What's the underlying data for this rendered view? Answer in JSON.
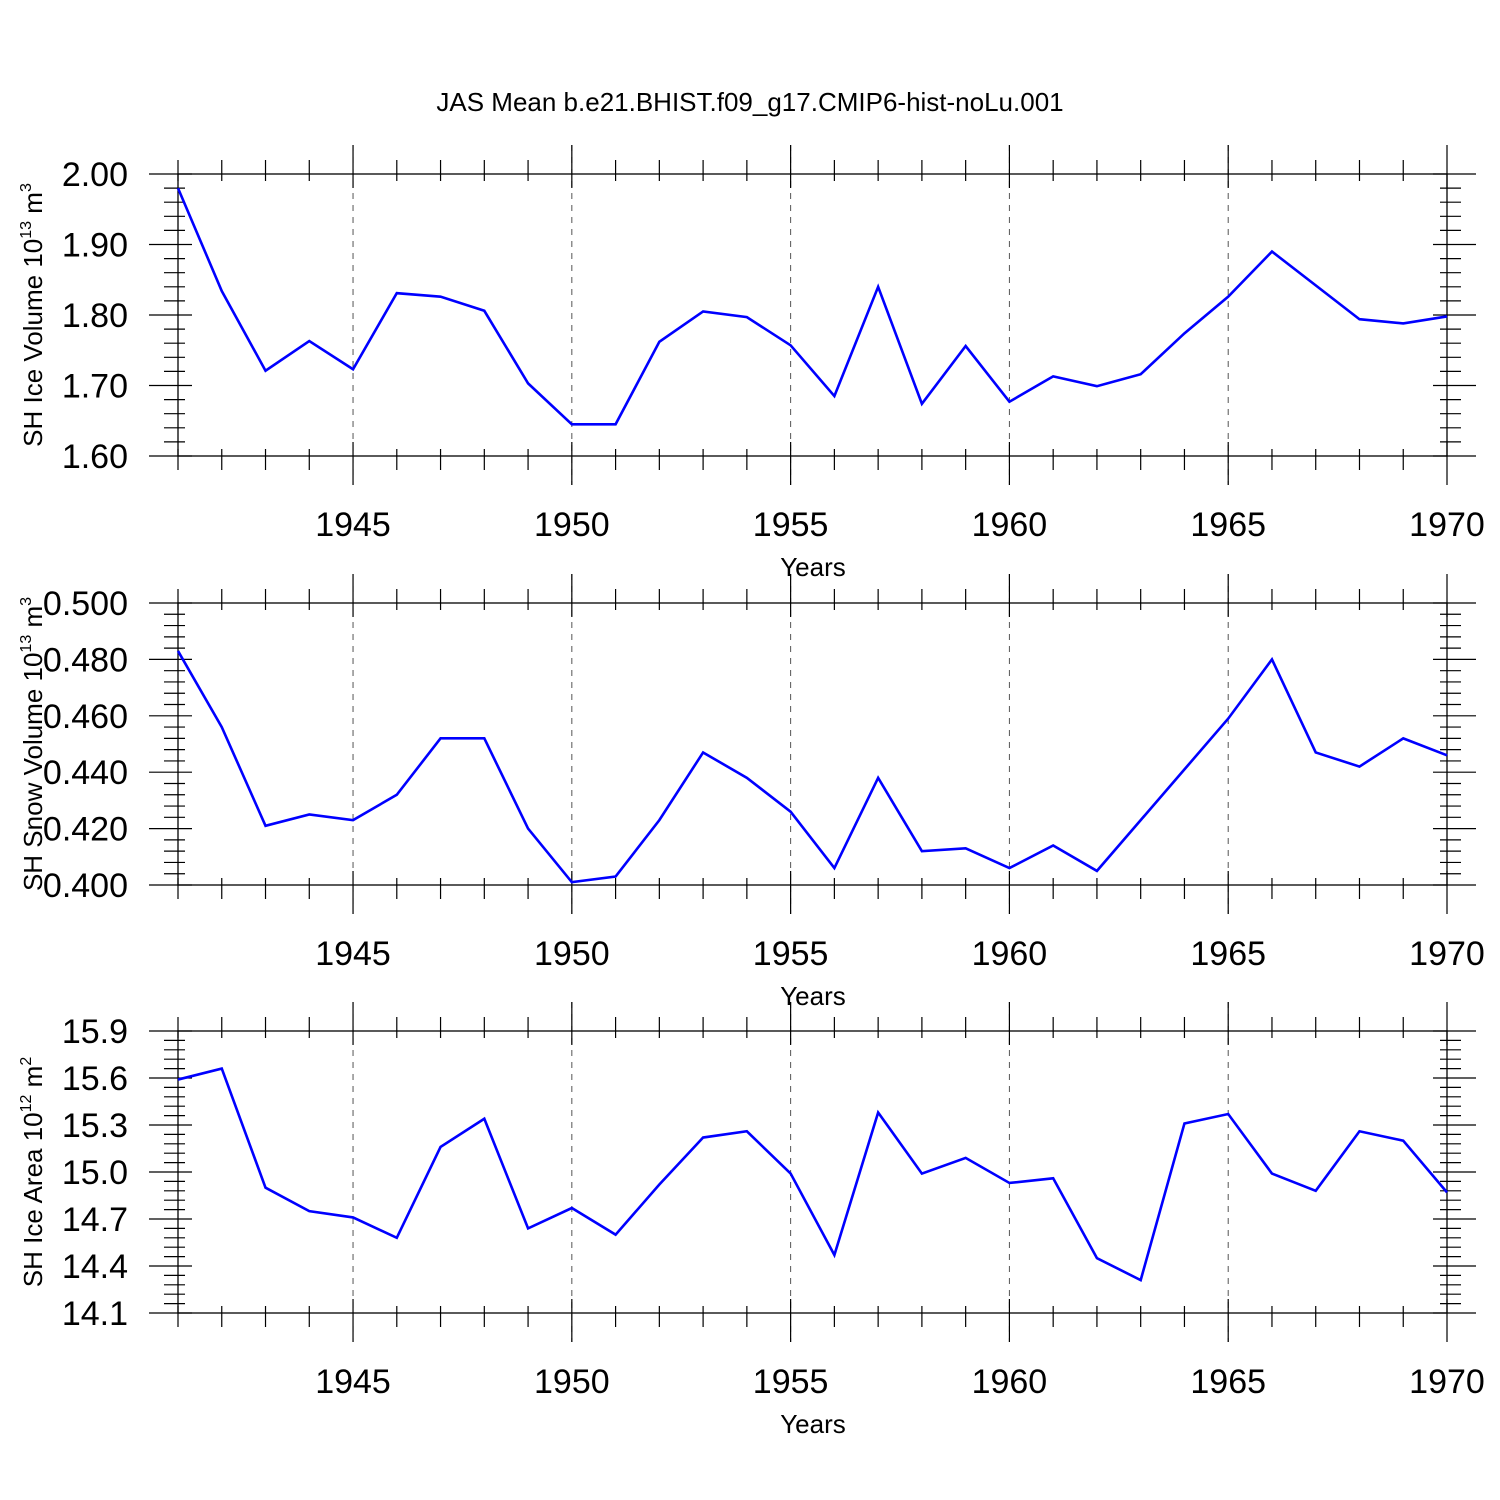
{
  "figure": {
    "title": "JAS Mean b.e21.BHIST.f09_g17.CMIP6-hist-noLu.001"
  },
  "chart_data": [
    {
      "type": "line",
      "id": "ice-volume",
      "xlabel": "Years",
      "ylabel": "SH Ice Volume 10",
      "ylabel_exp": "13",
      "ylabel_unit": " m",
      "ylabel_unit_exp": "3",
      "xlim": [
        1941,
        1970
      ],
      "ylim": [
        1.6,
        2.0
      ],
      "x_ticks": [
        1945,
        1950,
        1955,
        1960,
        1965,
        1970
      ],
      "x_tick_labels": [
        "1945",
        "1950",
        "1955",
        "1960",
        "1965",
        "1970"
      ],
      "y_ticks": [
        1.6,
        1.7,
        1.8,
        1.9,
        2.0
      ],
      "y_tick_labels": [
        "1.60",
        "1.70",
        "1.80",
        "1.90",
        "2.00"
      ],
      "x_minor_step": 1,
      "y_minor_step": 0.02,
      "grid": "vertical dashed at major x ticks",
      "line_color": "#0000ff",
      "series": [
        {
          "name": "SH Ice Volume",
          "x": [
            1941,
            1942,
            1943,
            1944,
            1945,
            1946,
            1947,
            1948,
            1949,
            1950,
            1951,
            1952,
            1953,
            1954,
            1955,
            1956,
            1957,
            1958,
            1959,
            1960,
            1961,
            1962,
            1963,
            1964,
            1965,
            1966,
            1967,
            1968,
            1969,
            1970
          ],
          "values": [
            1.98,
            1.834,
            1.721,
            1.763,
            1.723,
            1.831,
            1.826,
            1.806,
            1.703,
            1.645,
            1.645,
            1.762,
            1.805,
            1.797,
            1.757,
            1.685,
            1.84,
            1.674,
            1.756,
            1.677,
            1.713,
            1.699,
            1.716,
            1.774,
            1.826,
            1.89,
            1.842,
            1.794,
            1.788,
            1.798
          ]
        }
      ]
    },
    {
      "type": "line",
      "id": "snow-volume",
      "xlabel": "Years",
      "ylabel": "SH Snow Volume 10",
      "ylabel_exp": "13",
      "ylabel_unit": " m",
      "ylabel_unit_exp": "3",
      "xlim": [
        1941,
        1970
      ],
      "ylim": [
        0.4,
        0.5
      ],
      "x_ticks": [
        1945,
        1950,
        1955,
        1960,
        1965,
        1970
      ],
      "x_tick_labels": [
        "1945",
        "1950",
        "1955",
        "1960",
        "1965",
        "1970"
      ],
      "y_ticks": [
        0.4,
        0.42,
        0.44,
        0.46,
        0.48,
        0.5
      ],
      "y_tick_labels": [
        "0.400",
        "0.420",
        "0.440",
        "0.460",
        "0.480",
        "0.500"
      ],
      "x_minor_step": 1,
      "y_minor_step": 0.004,
      "grid": "vertical dashed at major x ticks",
      "line_color": "#0000ff",
      "series": [
        {
          "name": "SH Snow Volume",
          "x": [
            1941,
            1942,
            1943,
            1944,
            1945,
            1946,
            1947,
            1948,
            1949,
            1950,
            1951,
            1952,
            1953,
            1954,
            1955,
            1956,
            1957,
            1958,
            1959,
            1960,
            1961,
            1962,
            1963,
            1964,
            1965,
            1966,
            1967,
            1968,
            1969,
            1970
          ],
          "values": [
            0.483,
            0.456,
            0.421,
            0.425,
            0.423,
            0.432,
            0.452,
            0.452,
            0.42,
            0.401,
            0.403,
            0.423,
            0.447,
            0.438,
            0.426,
            0.406,
            0.438,
            0.412,
            0.413,
            0.406,
            0.414,
            0.405,
            0.423,
            0.441,
            0.459,
            0.48,
            0.447,
            0.442,
            0.452,
            0.446
          ]
        }
      ]
    },
    {
      "type": "line",
      "id": "ice-area",
      "xlabel": "Years",
      "ylabel": "SH Ice Area 10",
      "ylabel_exp": "12",
      "ylabel_unit": " m",
      "ylabel_unit_exp": "2",
      "xlim": [
        1941,
        1970
      ],
      "ylim": [
        14.1,
        15.9
      ],
      "x_ticks": [
        1945,
        1950,
        1955,
        1960,
        1965,
        1970
      ],
      "x_tick_labels": [
        "1945",
        "1950",
        "1955",
        "1960",
        "1965",
        "1970"
      ],
      "y_ticks": [
        14.1,
        14.4,
        14.7,
        15.0,
        15.3,
        15.6,
        15.9
      ],
      "y_tick_labels": [
        "14.1",
        "14.4",
        "14.7",
        "15.0",
        "15.3",
        "15.6",
        "15.9"
      ],
      "x_minor_step": 1,
      "y_minor_step": 0.06,
      "grid": "vertical dashed at major x ticks",
      "line_color": "#0000ff",
      "series": [
        {
          "name": "SH Ice Area",
          "x": [
            1941,
            1942,
            1943,
            1944,
            1945,
            1946,
            1947,
            1948,
            1949,
            1950,
            1951,
            1952,
            1953,
            1954,
            1955,
            1956,
            1957,
            1958,
            1959,
            1960,
            1961,
            1962,
            1963,
            1964,
            1965,
            1966,
            1967,
            1968,
            1969,
            1970
          ],
          "values": [
            15.59,
            15.66,
            14.9,
            14.75,
            14.71,
            14.58,
            15.16,
            15.34,
            14.64,
            14.77,
            14.6,
            14.92,
            15.22,
            15.26,
            14.99,
            14.47,
            15.38,
            14.99,
            15.09,
            14.93,
            14.96,
            14.45,
            14.31,
            15.31,
            15.37,
            14.99,
            14.88,
            15.26,
            15.2,
            14.87
          ]
        }
      ]
    }
  ]
}
